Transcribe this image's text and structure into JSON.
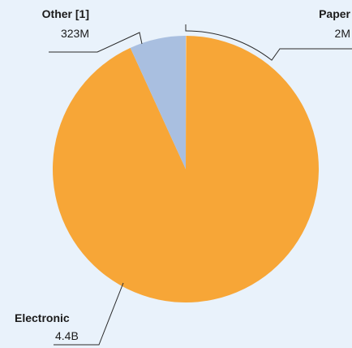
{
  "chart_data": {
    "type": "pie",
    "slices": [
      {
        "label": "Paper",
        "value_label": "2M",
        "value": 2,
        "color": "#f5f5f5"
      },
      {
        "label": "Electronic",
        "value_label": "4.4B",
        "value": 4400,
        "color": "#f7a637"
      },
      {
        "label": "Other [1]",
        "value_label": "323M",
        "value": 323,
        "color": "#a9bfe0"
      }
    ],
    "unit": "millions",
    "start_angle": "12 o'clock",
    "direction": "clockwise"
  }
}
